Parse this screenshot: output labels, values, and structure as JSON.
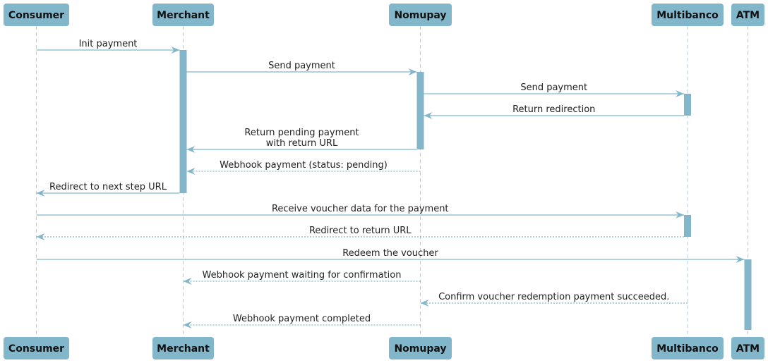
{
  "colors": {
    "participant": "#82b6cb",
    "arrow": "#82b6cb",
    "lifeline": "#a9d0de",
    "text": "#222222"
  },
  "participants": [
    {
      "id": "consumer",
      "label": "Consumer"
    },
    {
      "id": "merchant",
      "label": "Merchant"
    },
    {
      "id": "nomupay",
      "label": "Nomupay"
    },
    {
      "id": "multibanco",
      "label": "Multibanco"
    },
    {
      "id": "atm",
      "label": "ATM"
    }
  ],
  "messages": [
    {
      "from": "consumer",
      "to": "merchant",
      "style": "solid",
      "label": [
        "Init payment"
      ]
    },
    {
      "from": "merchant",
      "to": "nomupay",
      "style": "solid",
      "label": [
        "Send payment"
      ]
    },
    {
      "from": "nomupay",
      "to": "multibanco",
      "style": "solid",
      "label": [
        "Send payment"
      ]
    },
    {
      "from": "multibanco",
      "to": "nomupay",
      "style": "solid",
      "label": [
        "Return redirection"
      ]
    },
    {
      "from": "nomupay",
      "to": "merchant",
      "style": "solid",
      "label": [
        "Return pending payment",
        "with return URL"
      ]
    },
    {
      "from": "nomupay",
      "to": "merchant",
      "style": "dashed",
      "label": [
        "Webhook payment (status: pending)"
      ]
    },
    {
      "from": "merchant",
      "to": "consumer",
      "style": "solid",
      "label": [
        "Redirect to next step URL"
      ]
    },
    {
      "from": "consumer",
      "to": "multibanco",
      "style": "solid",
      "label": [
        "Receive voucher data for the payment"
      ]
    },
    {
      "from": "multibanco",
      "to": "consumer",
      "style": "dashed",
      "label": [
        "Redirect to return URL"
      ]
    },
    {
      "from": "consumer",
      "to": "atm",
      "style": "solid",
      "label": [
        "Redeem the voucher"
      ]
    },
    {
      "from": "nomupay",
      "to": "merchant",
      "style": "dashed",
      "label": [
        "Webhook payment waiting for confirmation"
      ]
    },
    {
      "from": "multibanco",
      "to": "nomupay",
      "style": "dashed",
      "label": [
        "Confirm voucher redemption payment succeeded."
      ]
    },
    {
      "from": "nomupay",
      "to": "merchant",
      "style": "dashed",
      "label": [
        "Webhook payment completed"
      ]
    }
  ],
  "activations": [
    {
      "participant": "merchant",
      "start_message": 0,
      "end_message": 6
    },
    {
      "participant": "nomupay",
      "start_message": 1,
      "end_message": 4
    },
    {
      "participant": "multibanco",
      "start_message": 2,
      "end_message": 3
    },
    {
      "participant": "multibanco",
      "start_message": 7,
      "end_message": 8
    },
    {
      "participant": "atm",
      "start_message": 9,
      "end_message": null
    }
  ]
}
